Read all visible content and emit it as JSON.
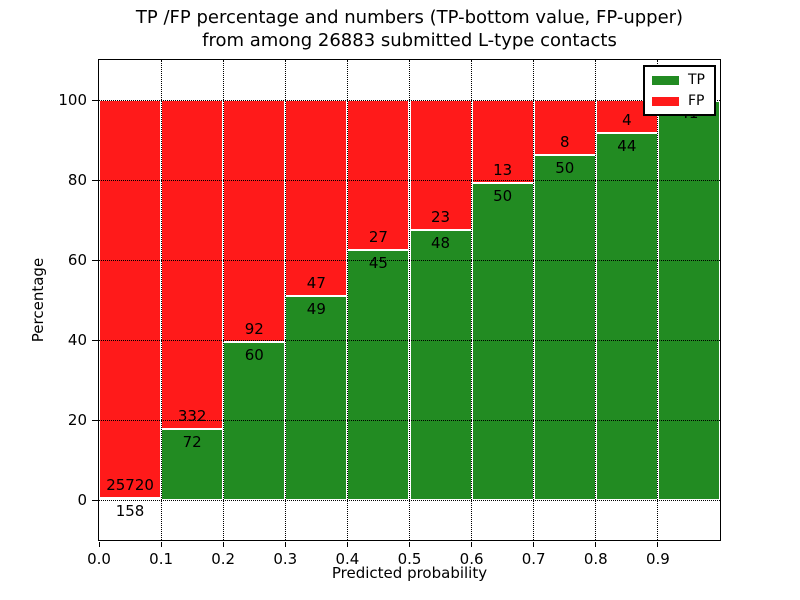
{
  "title": {
    "line1": "TP /FP percentage and numbers (TP-bottom value, FP-upper)",
    "line2": "from among 26883 submitted L-type contacts"
  },
  "axes": {
    "xlabel": "Predicted probability",
    "ylabel": "Percentage",
    "xticks": [
      "0.0",
      "0.1",
      "0.2",
      "0.3",
      "0.4",
      "0.5",
      "0.6",
      "0.7",
      "0.8",
      "0.9"
    ],
    "yticks": [
      0,
      20,
      40,
      60,
      80,
      100
    ]
  },
  "legend": [
    {
      "label": "TP",
      "color": "#228b22"
    },
    {
      "label": "FP",
      "color": "#ff1a1a"
    }
  ],
  "chart_data": {
    "type": "bar",
    "stacked": true,
    "normalized": "percent (each bar totals 100%)",
    "title": "TP /FP percentage and numbers (TP-bottom value, FP-upper) from among 26883 submitted L-type contacts",
    "xlabel": "Predicted probability",
    "ylabel": "Percentage",
    "xlim": [
      0.0,
      1.0
    ],
    "ylim": [
      -10,
      110
    ],
    "grid": "dotted both axes",
    "legend_position": "upper right",
    "bin_width": 0.1,
    "categories": [
      "0.0",
      "0.1",
      "0.2",
      "0.3",
      "0.4",
      "0.5",
      "0.6",
      "0.7",
      "0.8",
      "0.9"
    ],
    "series": [
      {
        "name": "TP",
        "color": "#228b22",
        "values": [
          158,
          72,
          60,
          49,
          45,
          48,
          50,
          50,
          44,
          41
        ]
      },
      {
        "name": "FP",
        "color": "#ff1a1a",
        "values": [
          25720,
          332,
          92,
          47,
          27,
          23,
          13,
          8,
          4,
          0
        ]
      }
    ],
    "tp_percent_heights": [
      0.61,
      17.82,
      39.47,
      51.04,
      62.5,
      67.61,
      79.37,
      86.21,
      91.67,
      100.0
    ],
    "total_contacts": 26883
  }
}
